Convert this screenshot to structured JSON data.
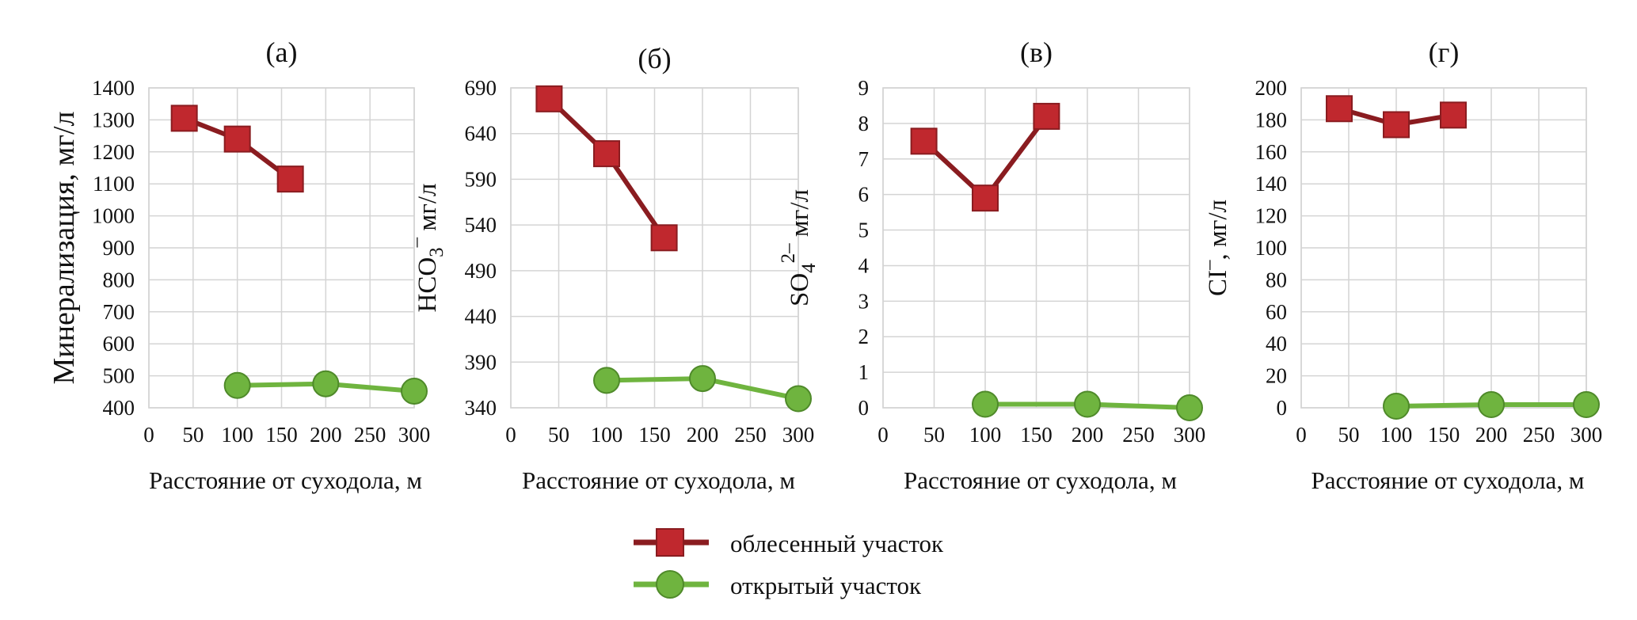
{
  "legend": {
    "forest": "облесенный участок",
    "open": "открытый участок",
    "forest_color": "#c0282e",
    "forest_edge": "#8a1c20",
    "open_color": "#6fb43f",
    "open_edge": "#4f8a2a"
  },
  "chart_data": [
    {
      "type": "line",
      "panel": "(а)",
      "xlabel": "Расстояние от суходола, м",
      "ylabel": "Минерализация, мг/л",
      "xlim": [
        0,
        300
      ],
      "xticks": [
        "0",
        "50",
        "100",
        "150",
        "200",
        "250",
        "300"
      ],
      "ylim": [
        400,
        1400
      ],
      "yticks": [
        "400",
        "500",
        "600",
        "700",
        "800",
        "900",
        "1000",
        "1100",
        "1200",
        "1300",
        "1400"
      ],
      "series": [
        {
          "name": "облесенный участок",
          "x": [
            40,
            100,
            160
          ],
          "y": [
            1305,
            1240,
            1115
          ]
        },
        {
          "name": "открытый участок",
          "x": [
            100,
            200,
            300
          ],
          "y": [
            470,
            475,
            452
          ]
        }
      ]
    },
    {
      "type": "line",
      "panel": "(б)",
      "xlabel": "Расстояние от суходола, м",
      "ylabel": "HCO₃⁻ мг/л",
      "ylabel_parts": {
        "base": "HCO",
        "sub": "3",
        "sup": "–",
        "unit": "мг/л"
      },
      "xlim": [
        0,
        300
      ],
      "xticks": [
        "0",
        "50",
        "100",
        "150",
        "200",
        "250",
        "300"
      ],
      "ylim": [
        340,
        690
      ],
      "yticks": [
        "340",
        "390",
        "440",
        "490",
        "540",
        "590",
        "640",
        "690"
      ],
      "series": [
        {
          "name": "облесенный участок",
          "x": [
            40,
            100,
            160
          ],
          "y": [
            678,
            618,
            526
          ]
        },
        {
          "name": "открытый участок",
          "x": [
            100,
            200,
            300
          ],
          "y": [
            370,
            372,
            350
          ]
        }
      ]
    },
    {
      "type": "line",
      "panel": "(в)",
      "xlabel": "Расстояние от суходола, м",
      "ylabel": "SO₄²⁻ мг/л",
      "ylabel_parts": {
        "base": "SO",
        "sub": "4",
        "sup": "2–",
        "unit": "мг/л"
      },
      "xlim": [
        0,
        300
      ],
      "xticks": [
        "0",
        "50",
        "100",
        "150",
        "200",
        "250",
        "300"
      ],
      "ylim": [
        0,
        9
      ],
      "yticks": [
        "0",
        "1",
        "2",
        "3",
        "4",
        "5",
        "6",
        "7",
        "8",
        "9"
      ],
      "series": [
        {
          "name": "облесенный участок",
          "x": [
            40,
            100,
            160
          ],
          "y": [
            7.5,
            5.9,
            8.2
          ]
        },
        {
          "name": "открытый участок",
          "x": [
            100,
            200,
            300
          ],
          "y": [
            0.1,
            0.1,
            0.0
          ]
        }
      ]
    },
    {
      "type": "line",
      "panel": "(г)",
      "xlabel": "Расстояние от суходола, м",
      "ylabel": "CI⁻, мг/л",
      "ylabel_parts": {
        "base": "CI",
        "sub": "",
        "sup": "–",
        "unit": ", мг/л"
      },
      "xlim": [
        0,
        300
      ],
      "xticks": [
        "0",
        "50",
        "100",
        "150",
        "200",
        "250",
        "300"
      ],
      "ylim": [
        0,
        200
      ],
      "yticks": [
        "0",
        "20",
        "40",
        "60",
        "80",
        "100",
        "120",
        "140",
        "160",
        "180",
        "200"
      ],
      "series": [
        {
          "name": "облесенный участок",
          "x": [
            40,
            100,
            160
          ],
          "y": [
            187,
            177,
            183
          ]
        },
        {
          "name": "открытый участок",
          "x": [
            100,
            200,
            300
          ],
          "y": [
            1,
            2,
            2
          ]
        }
      ]
    }
  ]
}
